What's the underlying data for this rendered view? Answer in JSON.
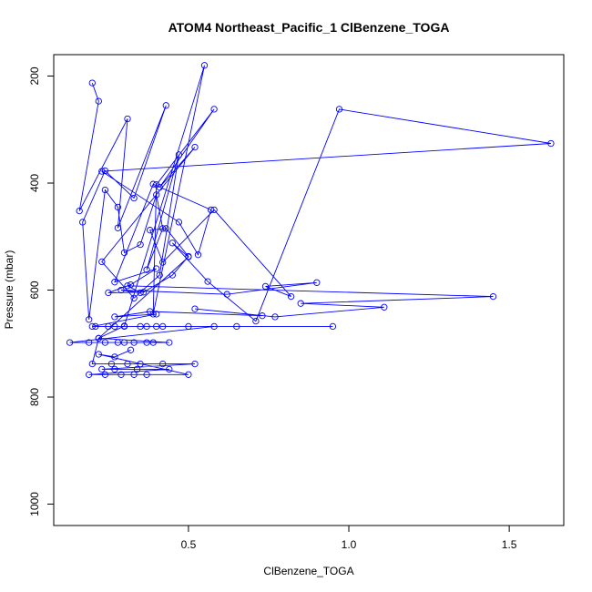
{
  "chart_data": {
    "type": "line",
    "title": "ATOM4 Northeast_Pacific_1 ClBenzene_TOGA",
    "xlabel": "ClBenzene_TOGA",
    "ylabel": "Pressure (mbar)",
    "xlim": [
      0.08,
      1.67
    ],
    "ylim": [
      1040,
      160
    ],
    "x_ticks": [
      0.5,
      1.0,
      1.5
    ],
    "x_tick_labels": [
      "0.5",
      "1.0",
      "1.5"
    ],
    "y_ticks": [
      200,
      400,
      600,
      800,
      1000
    ],
    "y_tick_labels": [
      "200",
      "400",
      "600",
      "800",
      "1000"
    ],
    "grid": false,
    "series": [
      {
        "color": "#0000ff",
        "marker": "open-circle",
        "x": [
          0.2,
          0.22,
          0.16,
          0.31,
          0.28,
          0.43,
          0.33,
          0.24,
          0.17,
          0.19,
          0.24,
          0.28,
          0.3,
          0.35,
          0.4,
          0.42,
          0.37,
          0.47,
          0.41,
          0.33,
          0.23,
          0.52,
          0.41,
          0.58,
          0.4,
          0.39,
          0.55,
          0.3,
          0.22,
          0.5,
          0.45,
          0.56,
          0.71,
          0.97,
          1.63,
          0.23,
          0.47,
          0.53,
          0.57,
          0.39,
          0.27,
          0.4,
          0.32,
          0.25,
          0.36,
          0.45,
          0.5,
          0.43,
          0.38,
          0.42,
          0.58,
          0.82,
          0.74,
          0.9,
          0.62,
          0.29,
          0.35,
          0.31,
          1.45,
          0.85,
          1.11,
          0.77,
          0.52,
          0.73,
          0.38,
          0.27,
          0.4,
          0.2,
          0.25,
          0.37,
          0.65,
          0.95,
          0.42,
          0.3,
          0.21,
          0.27,
          0.35,
          0.4,
          0.5,
          0.58,
          0.13,
          0.19,
          0.24,
          0.28,
          0.3,
          0.33,
          0.37,
          0.39,
          0.44,
          0.22,
          0.2,
          0.26,
          0.31,
          0.35,
          0.42,
          0.52,
          0.23,
          0.27,
          0.34,
          0.44,
          0.19,
          0.24,
          0.29,
          0.33,
          0.37,
          0.5,
          0.22,
          0.27,
          0.32
        ],
        "y": [
          213,
          247,
          452,
          280,
          484,
          255,
          428,
          377,
          473,
          655,
          413,
          445,
          530,
          515,
          422,
          485,
          562,
          347,
          572,
          615,
          547,
          333,
          408,
          262,
          403,
          645,
          180,
          667,
          690,
          538,
          512,
          584,
          658,
          262,
          326,
          378,
          473,
          534,
          450,
          402,
          585,
          560,
          590,
          605,
          604,
          572,
          537,
          485,
          488,
          548,
          450,
          612,
          593,
          586,
          608,
          600,
          605,
          592,
          612,
          625,
          632,
          650,
          635,
          648,
          640,
          650,
          645,
          668,
          668,
          668,
          668,
          668,
          668,
          668,
          668,
          668,
          668,
          668,
          668,
          668,
          698,
          698,
          698,
          698,
          698,
          698,
          698,
          698,
          698,
          690,
          738,
          738,
          738,
          738,
          738,
          738,
          748,
          748,
          748,
          748,
          758,
          758,
          758,
          758,
          758,
          758,
          720,
          725,
          712
        ]
      }
    ]
  }
}
